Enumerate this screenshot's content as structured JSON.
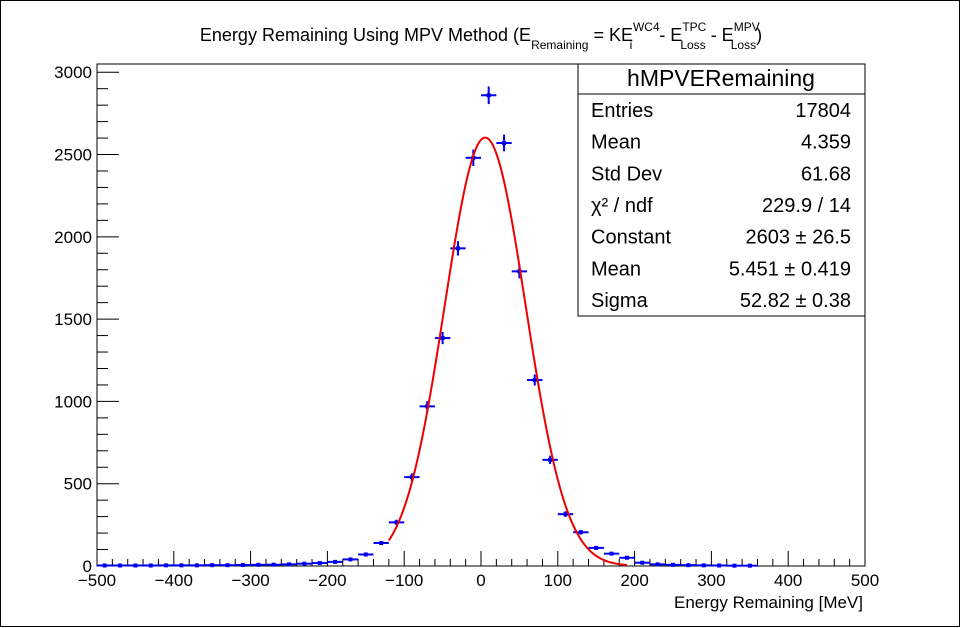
{
  "chart_data": {
    "type": "histogram",
    "title": {
      "text": "Energy Remaining Using MPV Method (E",
      "sub_remaining": "Remaining",
      "eq": " = KE",
      "sup_wc4": "WC4",
      "sub_i": "i",
      "minus1": " - E",
      "sup_tpc": "TPC",
      "sub_loss1": "Loss",
      "minus2": " - E",
      "sup_mpv": "MPV",
      "sub_loss2": "Loss",
      "close": ")"
    },
    "xlabel": "Energy Remaining [MeV]",
    "ylabel": "",
    "xlim": [
      -500,
      500
    ],
    "ylim": [
      0,
      3050
    ],
    "x_ticks": [
      "−500",
      "−400",
      "−300",
      "−200",
      "−100",
      "0",
      "100",
      "200",
      "300",
      "400",
      "500"
    ],
    "x_tick_values": [
      -500,
      -400,
      -300,
      -200,
      -100,
      0,
      100,
      200,
      300,
      400,
      500
    ],
    "y_ticks": [
      "0",
      "500",
      "1000",
      "1500",
      "2000",
      "2500",
      "3000"
    ],
    "y_tick_values": [
      0,
      500,
      1000,
      1500,
      2000,
      2500,
      3000
    ],
    "bin_width": 20,
    "points": [
      {
        "x": -490,
        "y": 3
      },
      {
        "x": -470,
        "y": 3
      },
      {
        "x": -450,
        "y": 3
      },
      {
        "x": -430,
        "y": 3
      },
      {
        "x": -410,
        "y": 4
      },
      {
        "x": -390,
        "y": 4
      },
      {
        "x": -370,
        "y": 4
      },
      {
        "x": -350,
        "y": 5
      },
      {
        "x": -330,
        "y": 5
      },
      {
        "x": -310,
        "y": 6
      },
      {
        "x": -290,
        "y": 7
      },
      {
        "x": -270,
        "y": 8
      },
      {
        "x": -250,
        "y": 10
      },
      {
        "x": -230,
        "y": 14
      },
      {
        "x": -210,
        "y": 18
      },
      {
        "x": -190,
        "y": 25
      },
      {
        "x": -170,
        "y": 40
      },
      {
        "x": -150,
        "y": 70
      },
      {
        "x": -130,
        "y": 140
      },
      {
        "x": -110,
        "y": 265
      },
      {
        "x": -90,
        "y": 540
      },
      {
        "x": -70,
        "y": 970
      },
      {
        "x": -50,
        "y": 1385
      },
      {
        "x": -30,
        "y": 1930
      },
      {
        "x": -10,
        "y": 2480
      },
      {
        "x": 10,
        "y": 2860
      },
      {
        "x": 30,
        "y": 2570
      },
      {
        "x": 50,
        "y": 1790
      },
      {
        "x": 70,
        "y": 1130
      },
      {
        "x": 90,
        "y": 645
      },
      {
        "x": 110,
        "y": 315
      },
      {
        "x": 130,
        "y": 205
      },
      {
        "x": 150,
        "y": 110
      },
      {
        "x": 170,
        "y": 75
      },
      {
        "x": 190,
        "y": 50
      },
      {
        "x": 210,
        "y": 20
      },
      {
        "x": 230,
        "y": 10
      },
      {
        "x": 250,
        "y": 7
      },
      {
        "x": 270,
        "y": 5
      },
      {
        "x": 290,
        "y": 4
      },
      {
        "x": 310,
        "y": 3
      },
      {
        "x": 330,
        "y": 2
      },
      {
        "x": 350,
        "y": 2
      }
    ],
    "fit": {
      "function": "gaus",
      "constant": 2603,
      "mean": 5.451,
      "sigma": 52.82,
      "range": [
        -120,
        190
      ],
      "color": "#ee0000"
    },
    "marker_color": "#0000ee",
    "grid": false,
    "legend_position": "top-right",
    "stats_box": {
      "name": "hMPVERemaining",
      "rows": [
        {
          "label": "Entries",
          "value": "17804"
        },
        {
          "label": "Mean",
          "value": "4.359"
        },
        {
          "label": "Std Dev",
          "value": "61.68"
        },
        {
          "label": "χ² / ndf",
          "value": "229.9 / 14"
        },
        {
          "label": "Constant",
          "value": "2603 ± 26.5"
        },
        {
          "label": "Mean",
          "value": "5.451 ± 0.419"
        },
        {
          "label": "Sigma",
          "value": "52.82 ± 0.38"
        }
      ]
    }
  }
}
